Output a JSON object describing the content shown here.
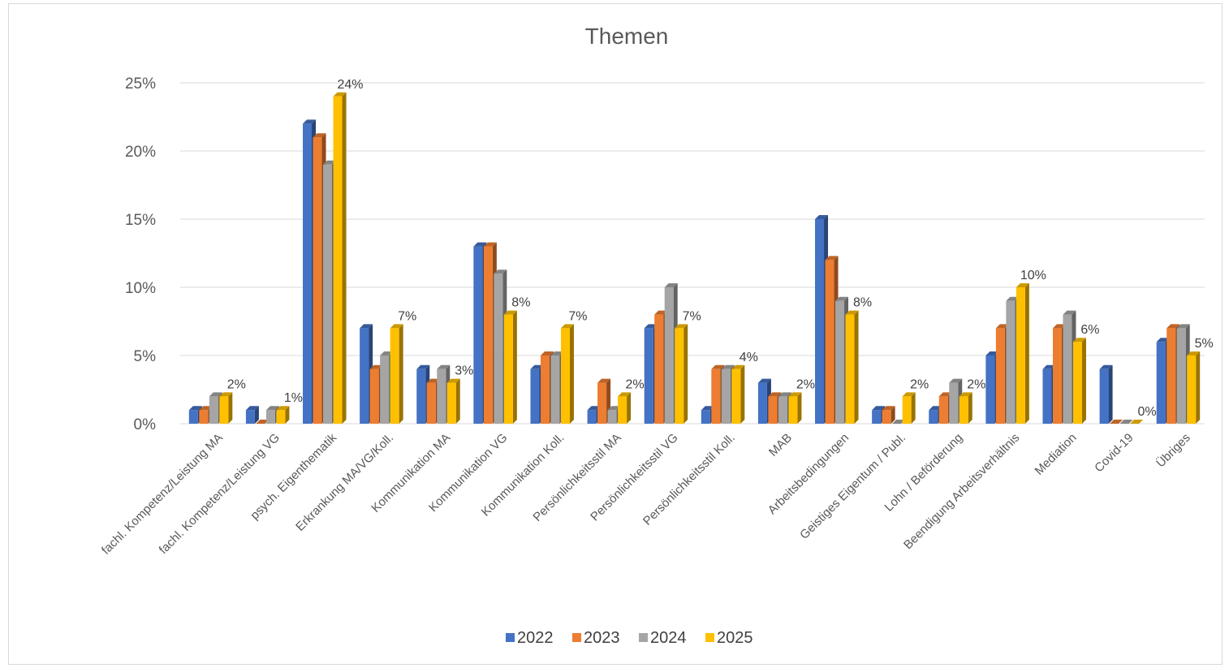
{
  "chart_data": {
    "type": "bar",
    "title": "Themen",
    "xlabel": "",
    "ylabel": "",
    "ylim": [
      0,
      0.25
    ],
    "yticks": [
      "0%",
      "5%",
      "10%",
      "15%",
      "20%",
      "25%"
    ],
    "grid": true,
    "legend_position": "bottom",
    "categories": [
      "fachl. Kompetenz/Leistung MA",
      "fachl. Kompetenz/Leistung VG",
      "psych. Eigenthematik",
      "Erkrankung MA/VG/Koll.",
      "Kommunikation MA",
      "Kommunikation VG",
      "Kommunikation Koll.",
      "Persönlichkeitsstil MA",
      "Persönlichkeitsstil VG",
      "Persönlichkeitsstil Koll.",
      "MAB",
      "Arbeitsbedingungen",
      "Geistiges Eigentum / Publ.",
      "Lohn / Beförderung",
      "Beendigung Arbeitsverhältnis",
      "Mediation",
      "Covid-19",
      "Übriges"
    ],
    "series": [
      {
        "name": "2022",
        "color": "#4472C4",
        "values": [
          0.01,
          0.01,
          0.22,
          0.07,
          0.04,
          0.13,
          0.04,
          0.01,
          0.07,
          0.01,
          0.03,
          0.15,
          0.01,
          0.01,
          0.05,
          0.04,
          0.04,
          0.06
        ]
      },
      {
        "name": "2023",
        "color": "#ED7D31",
        "values": [
          0.01,
          0.0,
          0.21,
          0.04,
          0.03,
          0.13,
          0.05,
          0.03,
          0.08,
          0.04,
          0.02,
          0.12,
          0.01,
          0.02,
          0.07,
          0.07,
          0.0,
          0.07
        ]
      },
      {
        "name": "2024",
        "color": "#A5A5A5",
        "values": [
          0.02,
          0.01,
          0.19,
          0.05,
          0.04,
          0.11,
          0.05,
          0.01,
          0.1,
          0.04,
          0.02,
          0.09,
          0.0,
          0.03,
          0.09,
          0.08,
          0.0,
          0.07
        ]
      },
      {
        "name": "2025",
        "color": "#FFC000",
        "values": [
          0.02,
          0.01,
          0.24,
          0.07,
          0.03,
          0.08,
          0.07,
          0.02,
          0.07,
          0.04,
          0.02,
          0.08,
          0.02,
          0.02,
          0.1,
          0.06,
          0.0,
          0.05
        ]
      }
    ],
    "data_labels": {
      "series": "2025",
      "labels": [
        "2%",
        "1%",
        "24%",
        "7%",
        "3%",
        "8%",
        "7%",
        "2%",
        "7%",
        "4%",
        "2%",
        "8%",
        "2%",
        "2%",
        "10%",
        "6%",
        "0%",
        "5%"
      ]
    }
  }
}
